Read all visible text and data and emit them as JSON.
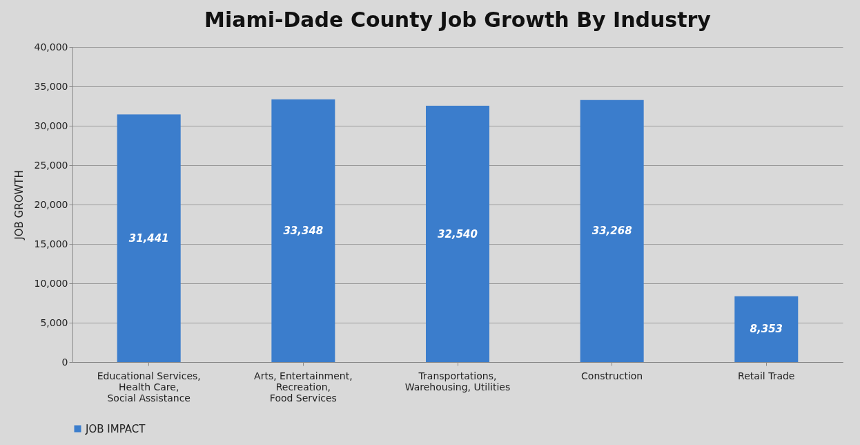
{
  "chart_data": {
    "type": "bar",
    "title": "Miami-Dade County Job Growth By Industry",
    "ylabel": "JOB GROWTH",
    "categories": [
      "Educational Services,\nHealth Care,\nSocial Assistance",
      "Arts, Entertainment,\nRecreation,\nFood Services",
      "Transportations,\nWarehousing, Utilities",
      "Construction",
      "Retail Trade"
    ],
    "series": [
      {
        "name": "JOB IMPACT",
        "color": "#3b7dcc",
        "values": [
          31441,
          33348,
          32540,
          33268,
          8353
        ],
        "value_labels": [
          "31,441",
          "33,348",
          "32,540",
          "33,268",
          "8,353"
        ]
      }
    ],
    "ylim": [
      0,
      40000
    ],
    "yticks": [
      0,
      {
        "value": 5000,
        "label": "5,000"
      },
      {
        "value": 10000,
        "label": "10,000"
      },
      {
        "value": 15000,
        "label": "15,000"
      },
      {
        "value": 20000,
        "label": "20,000"
      },
      {
        "value": 25000,
        "label": "25,000"
      },
      {
        "value": 30000,
        "label": "30,000"
      },
      {
        "value": 35000,
        "label": "35,000"
      },
      {
        "value": 40000,
        "label": "40,000"
      }
    ],
    "grid": "y",
    "legend": "bottom"
  }
}
